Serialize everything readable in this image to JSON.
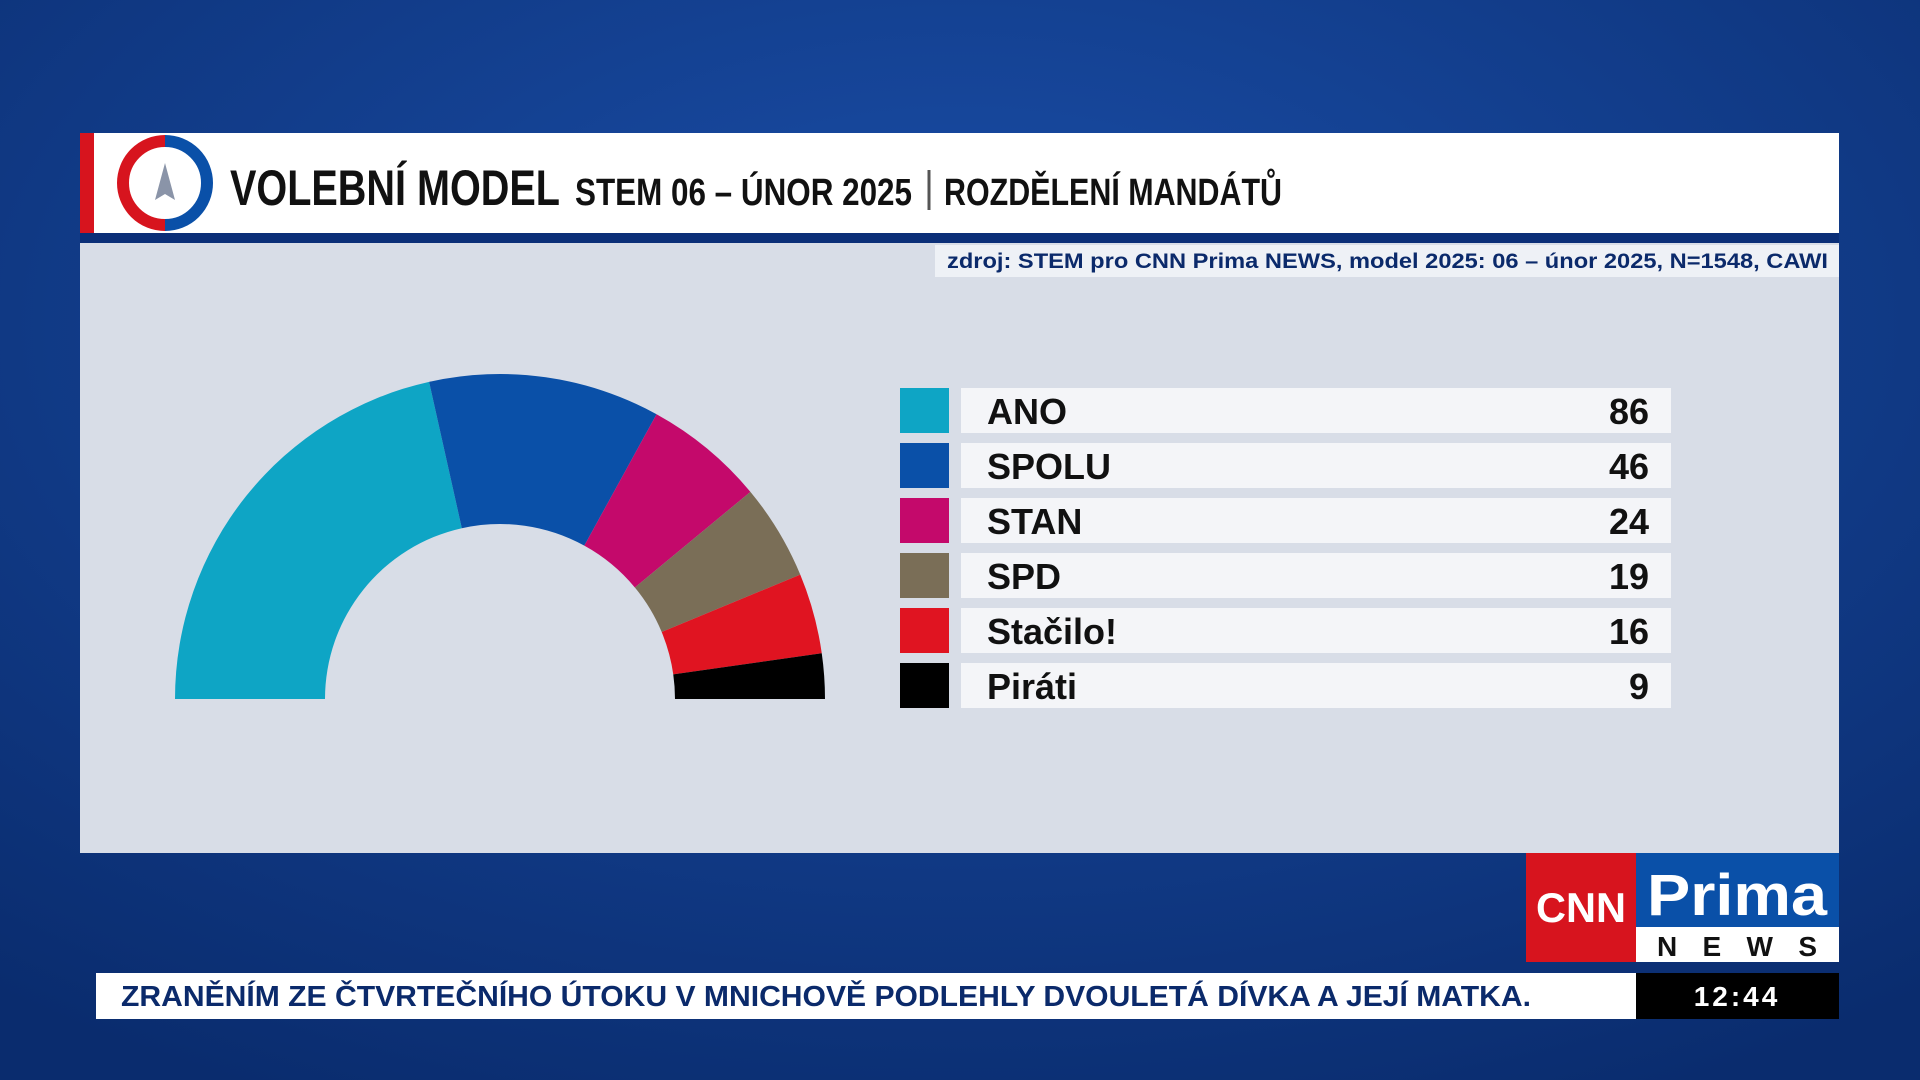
{
  "header": {
    "title": "VOLEBNÍ MODEL",
    "subtitle": "STEM 06 – ÚNOR 2025",
    "section": "ROZDĚLENÍ MANDÁTŮ"
  },
  "source": "zdroj: STEM pro CNN Prima NEWS, model 2025: 06 – únor 2025, N=1548, CAWI",
  "chart_data": {
    "type": "semidonut",
    "categories": [
      "ANO",
      "SPOLU",
      "STAN",
      "SPD",
      "Stačilo!",
      "Piráti"
    ],
    "values": [
      86,
      46,
      24,
      19,
      16,
      9
    ],
    "colors": [
      "#0ea5c5",
      "#0a50a8",
      "#c4096b",
      "#7a6e57",
      "#e01421",
      "#000000"
    ]
  },
  "logo": {
    "left": "CNN",
    "top": "Prima",
    "bottom": "NEWS"
  },
  "ticker": {
    "text": "ZRANĚNÍM ZE ČTVRTEČNÍHO ÚTOKU V MNICHOVĚ PODLEHLY DVOULETÁ DÍVKA A JEJÍ MATKA.",
    "time": "12:44"
  }
}
